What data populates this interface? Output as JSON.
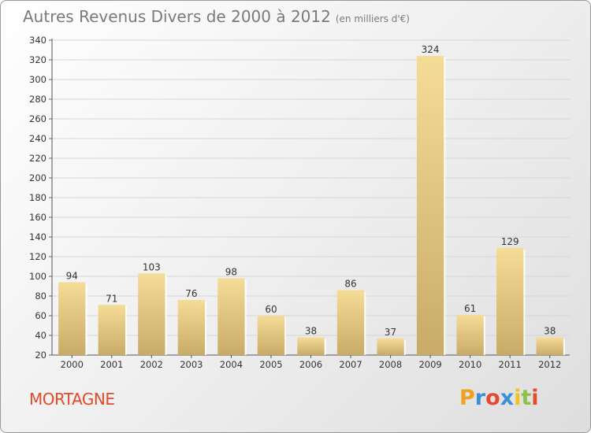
{
  "chart_data": {
    "type": "bar",
    "title": "Autres Revenus Divers de 2000 à 2012",
    "subtitle": "(en milliers d'€)",
    "xlabel": "",
    "ylabel": "",
    "categories": [
      "2000",
      "2001",
      "2002",
      "2003",
      "2004",
      "2005",
      "2006",
      "2007",
      "2008",
      "2009",
      "2010",
      "2011",
      "2012"
    ],
    "values": [
      94,
      71,
      103,
      76,
      98,
      60,
      38,
      86,
      37,
      324,
      61,
      129,
      38
    ],
    "ylim": [
      20,
      340
    ],
    "yticks": [
      20,
      40,
      60,
      80,
      100,
      120,
      140,
      160,
      180,
      200,
      220,
      240,
      260,
      280,
      300,
      320,
      340
    ],
    "grid": true,
    "bar_color_light": "#f5dc97",
    "bar_color_dark": "#c8ab66"
  },
  "commune": "MORTAGNE",
  "logo": {
    "letters": [
      "P",
      "r",
      "o",
      "x",
      "i",
      "t",
      "i"
    ],
    "colors": [
      "#f0a01e",
      "#3b8ed8",
      "#e64a2e",
      "#3b8ed8",
      "#f2c419",
      "#8bc34a",
      "#e64a2e"
    ]
  }
}
